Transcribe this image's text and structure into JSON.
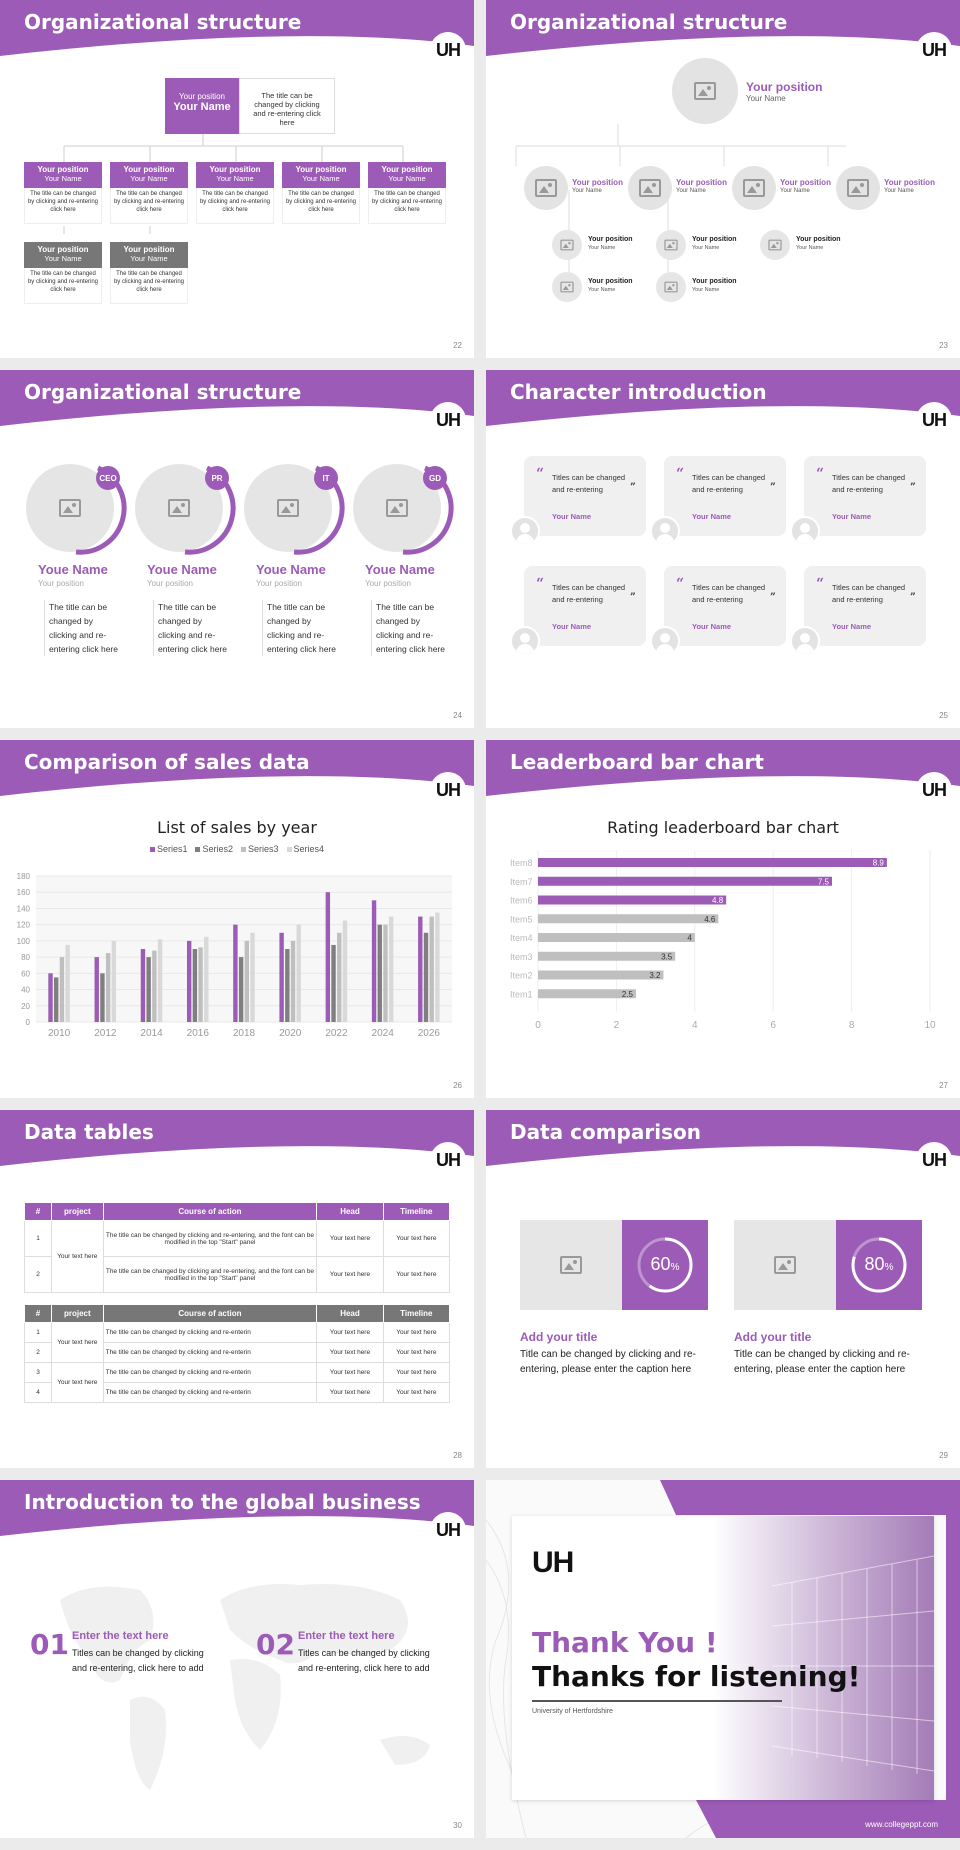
{
  "brand": {
    "logo": "UH",
    "accent": "#9c5bb6",
    "gray": "#777777"
  },
  "s22": {
    "title": "Organizational structure",
    "page": "22",
    "top": {
      "position": "Your position",
      "name": "Your Name",
      "text": "The title can be changed by clicking and re-entering click here"
    },
    "row1": [
      {
        "position": "Your position",
        "name": "Your Name",
        "text": "The title can be changed by clicking and re-entering click here"
      },
      {
        "position": "Your position",
        "name": "Your Name",
        "text": "The title can be changed by clicking and re-entering click here"
      },
      {
        "position": "Your position",
        "name": "Your Name",
        "text": "The title can be changed by clicking and re-entering click here"
      },
      {
        "position": "Your position",
        "name": "Your Name",
        "text": "The title can be changed by clicking and re-entering click here"
      },
      {
        "position": "Your position",
        "name": "Your Name",
        "text": "The title can be changed by clicking and re-entering click here"
      }
    ],
    "row2": [
      {
        "position": "Your position",
        "name": "Your Name",
        "text": "The title can be changed by clicking and re-entering click here"
      },
      {
        "position": "Your position",
        "name": "Your Name",
        "text": "The title can be changed by clicking and re-entering click here"
      }
    ]
  },
  "s23": {
    "title": "Organizational structure",
    "page": "23",
    "top": {
      "position": "Your position",
      "name": "Your Name"
    },
    "mid": [
      {
        "position": "Your position",
        "name": "Your Name"
      },
      {
        "position": "Your position",
        "name": "Your Name"
      },
      {
        "position": "Your position",
        "name": "Your Name"
      },
      {
        "position": "Your position",
        "name": "Your Name"
      }
    ],
    "sub": [
      {
        "position": "Your position",
        "name": "Your Name"
      },
      {
        "position": "Your position",
        "name": "Your Name"
      },
      {
        "position": "Your position",
        "name": "Your Name"
      },
      {
        "position": "Your position",
        "name": "Your Name"
      },
      {
        "position": "Your position",
        "name": "Your Name"
      }
    ]
  },
  "s24": {
    "title": "Organizational structure",
    "page": "24",
    "people": [
      {
        "badge": "CEO",
        "name": "Youe Name",
        "position": "Your position",
        "text": "The title can be changed by clicking and re-entering click here"
      },
      {
        "badge": "PR",
        "name": "Youe Name",
        "position": "Your position",
        "text": "The title can be changed by clicking and re-entering click here"
      },
      {
        "badge": "IT",
        "name": "Youe Name",
        "position": "Your position",
        "text": "The title can be changed by clicking and re-entering click here"
      },
      {
        "badge": "GD",
        "name": "Youe Name",
        "position": "Your position",
        "text": "The title can be changed by clicking and re-entering click here"
      }
    ]
  },
  "s25": {
    "title": "Character introduction",
    "page": "25",
    "quote": "Titles can be changed and re-entering",
    "name": "Your Name"
  },
  "s26": {
    "title": "Comparison of sales data",
    "page": "26"
  },
  "s27": {
    "title": "Leaderboard bar chart",
    "page": "27"
  },
  "s28": {
    "title": "Data tables",
    "page": "28",
    "headers": [
      "#",
      "project",
      "Course of action",
      "Head",
      "Timeline"
    ],
    "t1": {
      "project": "Your text here",
      "rows": [
        {
          "n": "1",
          "action": "The title can be changed by clicking and re-entering, and the font can be modified in the top \"Start\" panel",
          "head": "Your text here",
          "time": "Your text here"
        },
        {
          "n": "2",
          "action": "The title can be changed by clicking and re-entering, and the font can be modified in the top \"Start\" panel",
          "head": "Your text here",
          "time": "Your text here"
        }
      ]
    },
    "t2": {
      "rows": [
        {
          "n": "1",
          "project": "Your text here",
          "action": "The title can be changed by clicking and re-enterin",
          "head": "Your text here",
          "time": "Your text here"
        },
        {
          "n": "2",
          "project": "",
          "action": "The title can be changed by clicking and re-enterin",
          "head": "Your text here",
          "time": "Your text here"
        },
        {
          "n": "3",
          "project": "Your text here",
          "action": "The title can be changed by clicking and re-enterin",
          "head": "Your text here",
          "time": "Your text here"
        },
        {
          "n": "4",
          "project": "",
          "action": "The title can be changed by clicking and re-enterin",
          "head": "Your text here",
          "time": "Your text here"
        }
      ]
    }
  },
  "s29": {
    "title": "Data comparison",
    "page": "29",
    "cards": [
      {
        "pct": "60",
        "unit": "%",
        "value": 0.6,
        "title": "Add your title",
        "text": "Title can be changed by clicking and re-entering, please enter the caption here"
      },
      {
        "pct": "80",
        "unit": "%",
        "value": 0.8,
        "title": "Add your title",
        "text": "Title can be changed by clicking and re-entering, please enter the caption here"
      }
    ]
  },
  "s30": {
    "title": "Introduction to the global business",
    "page": "30",
    "items": [
      {
        "num": "01",
        "head": "Enter the text here",
        "text": "Titles can be changed by clicking and re-entering, click here to add"
      },
      {
        "num": "02",
        "head": "Enter the text here",
        "text": "Titles can be changed by clicking and re-entering, click here to add"
      }
    ]
  },
  "s31": {
    "logo": "UH",
    "line1": "Thank You !",
    "line2": "Thanks for listening!",
    "university": "University of Hertfordshire",
    "website": "www.collegeppt.com"
  },
  "chart_data": [
    {
      "type": "bar",
      "title": "List of sales by year",
      "xlabel": "",
      "ylabel": "",
      "ylim": [
        0,
        180
      ],
      "yticks": [
        "0",
        "20",
        "40",
        "60",
        "80",
        "100",
        "120",
        "140",
        "160",
        "180"
      ],
      "categories": [
        "2010",
        "2012",
        "2014",
        "2016",
        "2018",
        "2020",
        "2022",
        "2024",
        "2026"
      ],
      "legend": "top",
      "series": [
        {
          "name": "Series1",
          "color": "#9c5bb6",
          "values": [
            60,
            80,
            90,
            100,
            120,
            110,
            160,
            150,
            130
          ]
        },
        {
          "name": "Series2",
          "color": "#7f7f7f",
          "values": [
            55,
            60,
            80,
            90,
            80,
            90,
            95,
            120,
            110
          ]
        },
        {
          "name": "Series3",
          "color": "#bfbfbf",
          "values": [
            80,
            85,
            88,
            92,
            100,
            100,
            110,
            120,
            130
          ]
        },
        {
          "name": "Series4",
          "color": "#d9d9d9",
          "values": [
            95,
            100,
            102,
            105,
            110,
            120,
            125,
            130,
            135
          ]
        }
      ]
    },
    {
      "type": "bar",
      "orientation": "horizontal",
      "title": "Rating leaderboard bar chart",
      "xlim": [
        0,
        10
      ],
      "xticks": [
        "0",
        "2",
        "4",
        "6",
        "8",
        "10"
      ],
      "categories": [
        "Item8",
        "Item7",
        "Item6",
        "Item5",
        "Item4",
        "Item3",
        "Item2",
        "Item1"
      ],
      "values": [
        8.9,
        7.5,
        4.8,
        4.6,
        4,
        3.5,
        3.2,
        2.5
      ],
      "labels": [
        "8.9",
        "7.5",
        "4.8",
        "4.6",
        "4",
        "3.5",
        "3.2",
        "2.5"
      ]
    }
  ]
}
